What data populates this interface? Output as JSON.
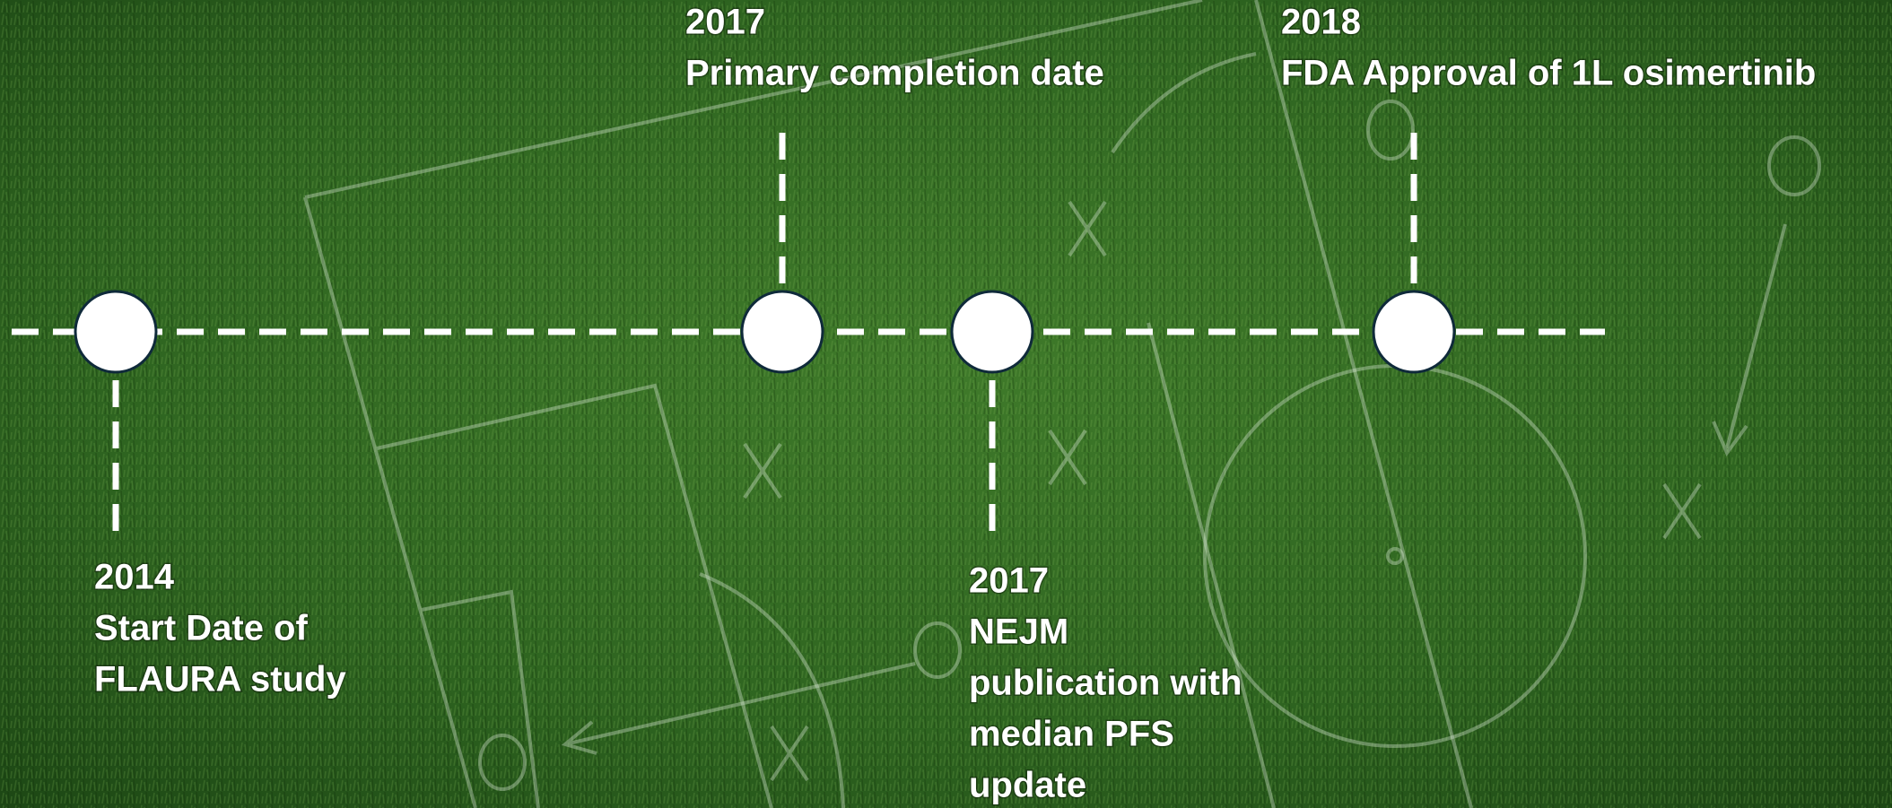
{
  "events": [
    {
      "year": "2014",
      "lines": [
        "Start Date of",
        "FLAURA study"
      ]
    },
    {
      "year": "2017",
      "lines": [
        "Primary completion date"
      ]
    },
    {
      "year": "2017",
      "lines": [
        "NEJM",
        "publication with",
        "median PFS",
        "update"
      ]
    },
    {
      "year": "2018",
      "lines": [
        "FDA Approval of 1L osimertinib"
      ]
    }
  ]
}
